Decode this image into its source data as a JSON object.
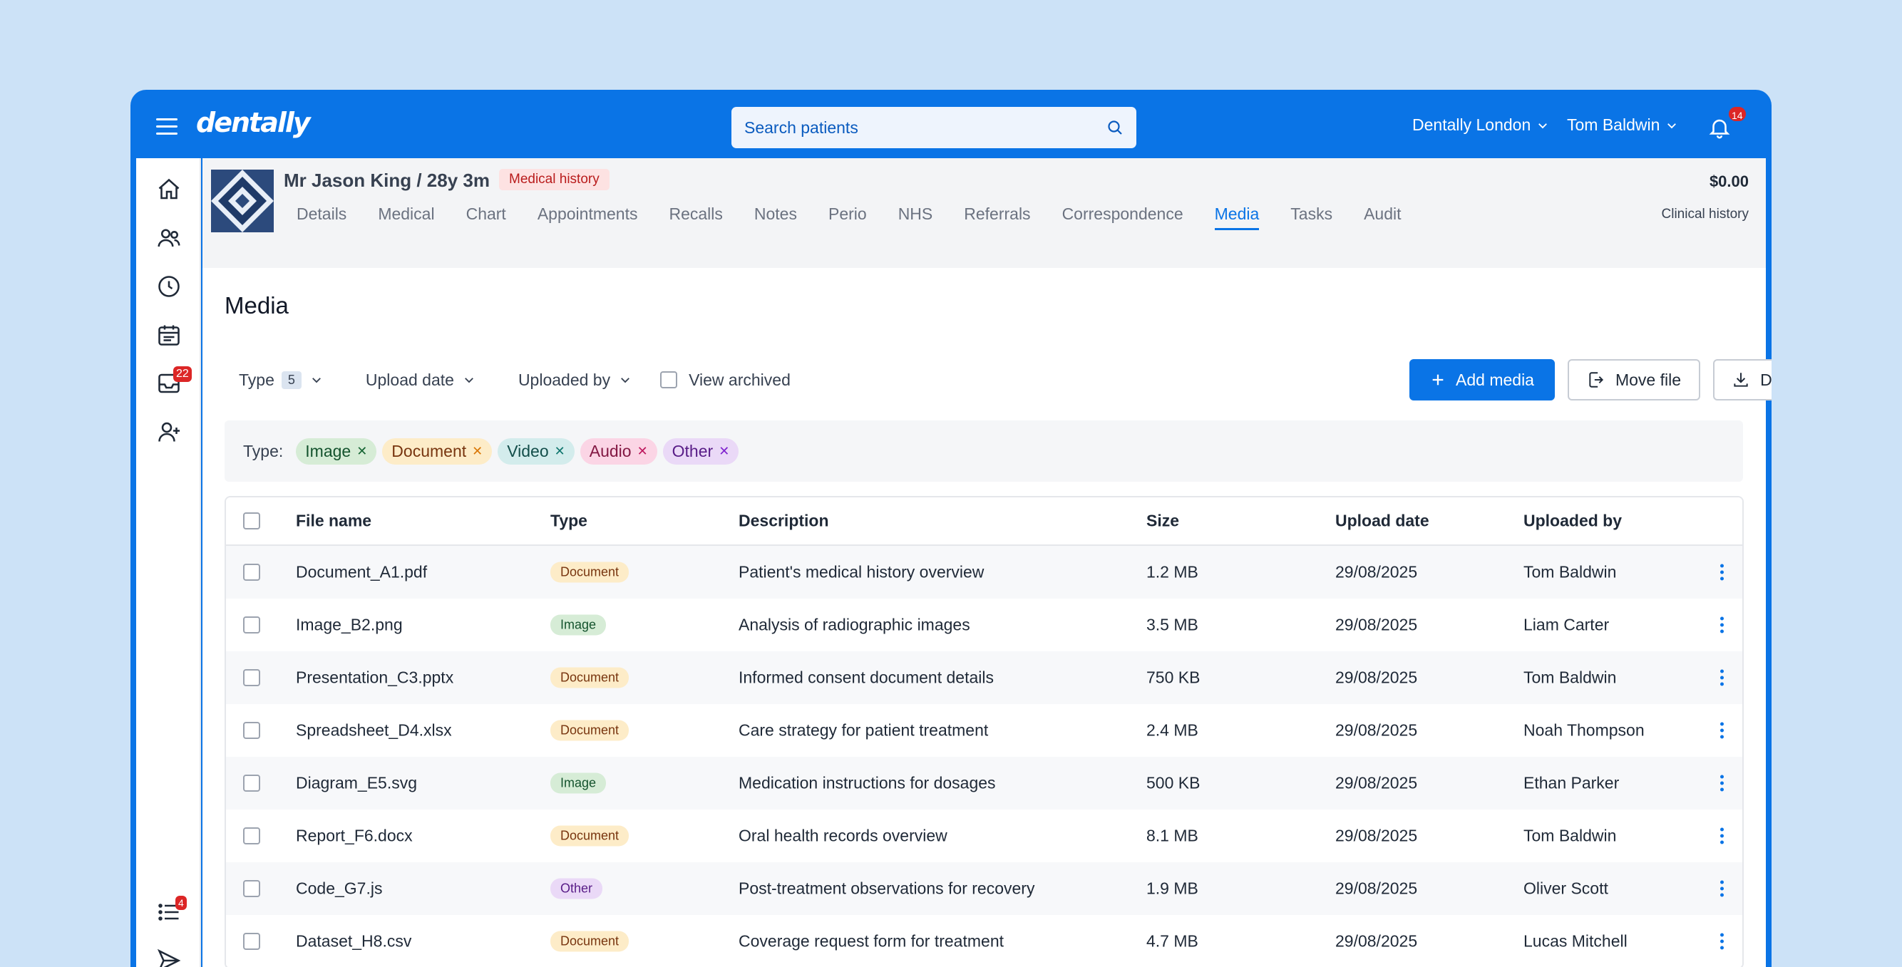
{
  "header": {
    "logo": "dentally",
    "search_placeholder": "Search patients",
    "practice": "Dentally London",
    "user": "Tom Baldwin",
    "notifications": "14"
  },
  "sidebar": {
    "inbox_badge": "22",
    "tasks_badge": "4",
    "icons": [
      "home-icon",
      "patients-icon",
      "clock-icon",
      "calendar-icon",
      "inbox-icon",
      "add-user-icon",
      "list-icon",
      "send-icon"
    ]
  },
  "patient": {
    "name": "Mr Jason King / 28y 3m",
    "badge": "Medical history",
    "balance": "$0.00",
    "clinical_history": "Clinical history",
    "tabs": [
      "Details",
      "Medical",
      "Chart",
      "Appointments",
      "Recalls",
      "Notes",
      "Perio",
      "NHS",
      "Referrals",
      "Correspondence",
      "Media",
      "Tasks",
      "Audit"
    ],
    "active_tab": "Media"
  },
  "page": {
    "title": "Media",
    "filters": {
      "type": "Type",
      "type_count": "5",
      "upload_date": "Upload date",
      "uploaded_by": "Uploaded by",
      "view_archived": "View archived"
    },
    "actions": {
      "add_media": "Add media",
      "move_file": "Move file",
      "download_all": "Download all"
    },
    "chips_label": "Type:",
    "chips": [
      {
        "label": "Image",
        "bg": "#d6ecd6",
        "fg": "#14532d",
        "x": "#166534"
      },
      {
        "label": "Document",
        "bg": "#fdecc8",
        "fg": "#78350f",
        "x": "#d97706"
      },
      {
        "label": "Video",
        "bg": "#d3ecec",
        "fg": "#134e4a",
        "x": "#0f766e"
      },
      {
        "label": "Audio",
        "bg": "#fbd5e5",
        "fg": "#831843",
        "x": "#be185d"
      },
      {
        "label": "Other",
        "bg": "#ead9f7",
        "fg": "#581c87",
        "x": "#7e22ce"
      }
    ]
  },
  "table": {
    "headers": {
      "file_name": "File name",
      "type": "Type",
      "description": "Description",
      "size": "Size",
      "upload_date": "Upload date",
      "uploaded_by": "Uploaded by"
    },
    "rows": [
      {
        "file": "Document_A1.pdf",
        "type": "Document",
        "desc": "Patient's medical history overview",
        "size": "1.2 MB",
        "date": "29/08/2025",
        "by": "Tom Baldwin"
      },
      {
        "file": "Image_B2.png",
        "type": "Image",
        "desc": "Analysis of radiographic images",
        "size": "3.5 MB",
        "date": "29/08/2025",
        "by": "Liam Carter"
      },
      {
        "file": "Presentation_C3.pptx",
        "type": "Document",
        "desc": "Informed consent document details",
        "size": "750 KB",
        "date": "29/08/2025",
        "by": "Tom Baldwin"
      },
      {
        "file": "Spreadsheet_D4.xlsx",
        "type": "Document",
        "desc": "Care strategy for patient treatment",
        "size": "2.4 MB",
        "date": "29/08/2025",
        "by": "Noah Thompson"
      },
      {
        "file": "Diagram_E5.svg",
        "type": "Image",
        "desc": "Medication instructions for dosages",
        "size": "500 KB",
        "date": "29/08/2025",
        "by": "Ethan Parker"
      },
      {
        "file": "Report_F6.docx",
        "type": "Document",
        "desc": "Oral health records overview",
        "size": "8.1 MB",
        "date": "29/08/2025",
        "by": "Tom Baldwin"
      },
      {
        "file": "Code_G7.js",
        "type": "Other",
        "desc": "Post-treatment observations for recovery",
        "size": "1.9 MB",
        "date": "29/08/2025",
        "by": "Oliver Scott"
      },
      {
        "file": "Dataset_H8.csv",
        "type": "Document",
        "desc": "Coverage request form for treatment",
        "size": "4.7 MB",
        "date": "29/08/2025",
        "by": "Lucas Mitchell"
      }
    ]
  },
  "type_colors": {
    "Document": {
      "bg": "#fdecc8",
      "fg": "#78350f"
    },
    "Image": {
      "bg": "#d6ecd6",
      "fg": "#14532d"
    },
    "Other": {
      "bg": "#ead9f7",
      "fg": "#581c87"
    }
  },
  "colors": {
    "brand": "#0a74e6",
    "background": "#cce2f7"
  }
}
